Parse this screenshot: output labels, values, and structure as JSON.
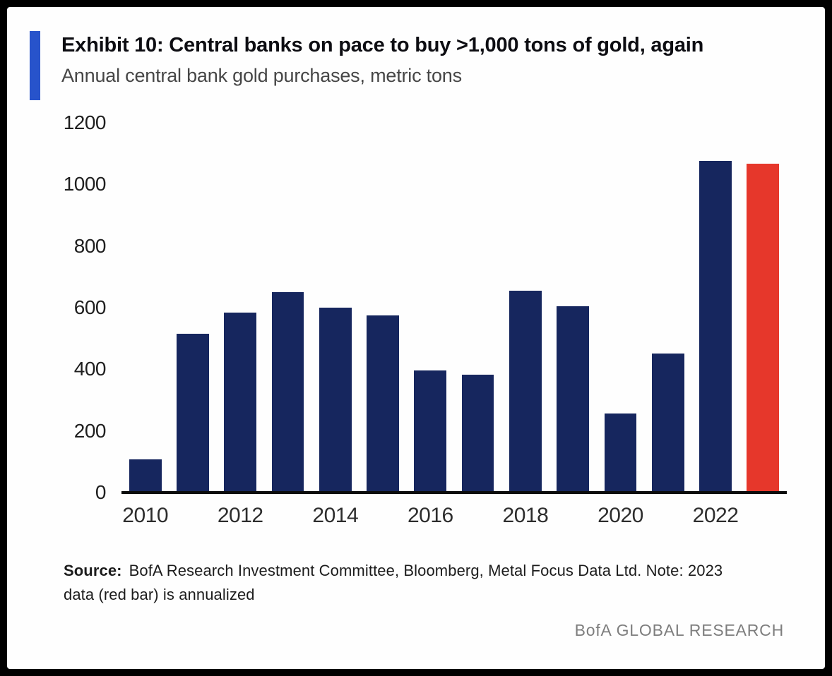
{
  "header": {
    "title": "Exhibit 10: Central banks on pace to buy >1,000 tons of gold, again",
    "subtitle": "Annual central bank gold purchases, metric tons"
  },
  "chart_data": {
    "type": "bar",
    "title": "Exhibit 10: Central banks on pace to buy >1,000 tons of gold, again",
    "subtitle": "Annual central bank gold purchases, metric tons",
    "categories": [
      "2010",
      "2011",
      "2012",
      "2013",
      "2014",
      "2015",
      "2016",
      "2017",
      "2018",
      "2019",
      "2020",
      "2021",
      "2022",
      "2023"
    ],
    "values": [
      105,
      515,
      585,
      650,
      600,
      575,
      395,
      380,
      655,
      605,
      255,
      450,
      1080,
      1070
    ],
    "highlight_index": 13,
    "highlight_note": "2023 red bar is annualized",
    "bar_colors": {
      "default": "#16265e",
      "highlight": "#e6372b"
    },
    "x_tick_labels": [
      "2010",
      "2012",
      "2014",
      "2016",
      "2018",
      "2020",
      "2022"
    ],
    "y_ticks": [
      0,
      200,
      400,
      600,
      800,
      1000,
      1200
    ],
    "ylim": [
      0,
      1200
    ],
    "xlabel": "",
    "ylabel": "",
    "grid": false,
    "legend": "none"
  },
  "footer": {
    "source_label": "Source:",
    "source_text": "BofA Research Investment Committee, Bloomberg, Metal Focus Data Ltd. Note: 2023 data (red bar) is annualized",
    "brand": "BofA GLOBAL RESEARCH"
  },
  "colors": {
    "accent": "#2753cb",
    "bar_navy": "#16265e",
    "bar_red": "#e6372b"
  }
}
